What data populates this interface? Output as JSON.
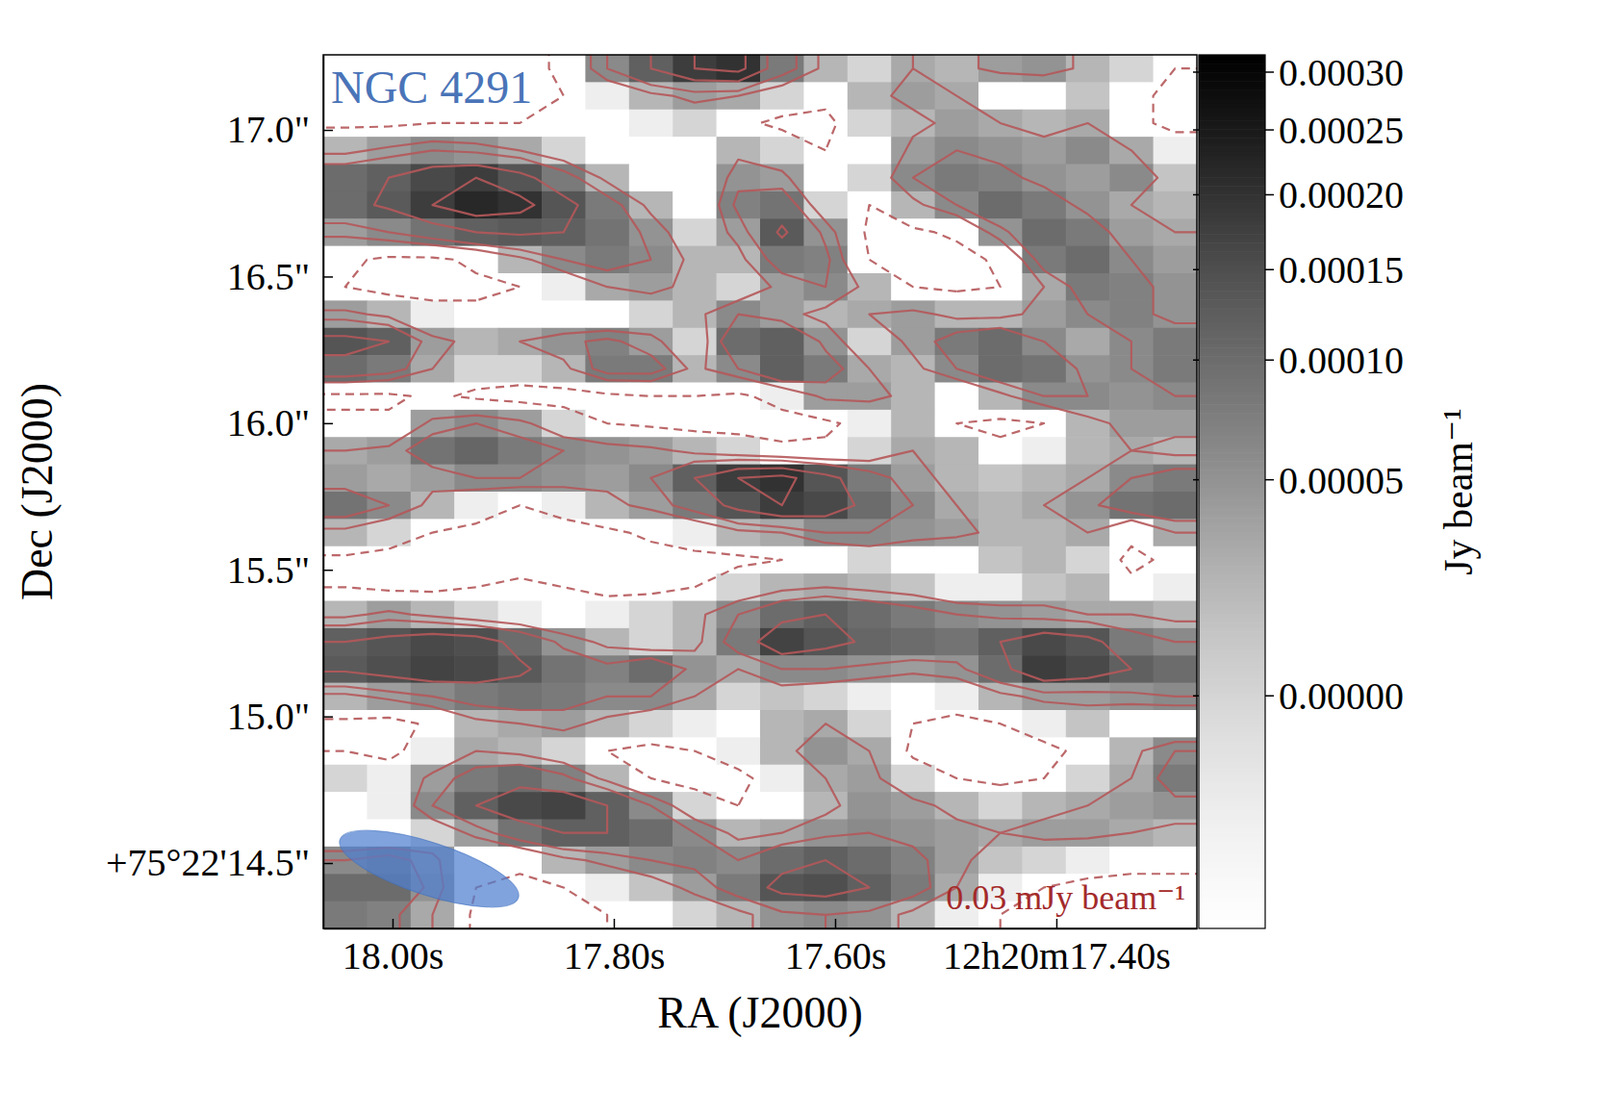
{
  "chart_data": {
    "type": "heatmap",
    "title": "NGC 4291",
    "x_label": "RA (J2000)",
    "y_label": "Dec (J2000)",
    "xlim": [
      18.0626,
      17.273
    ],
    "ylim": [
      14.277,
      17.256
    ],
    "xticks": [
      {
        "value": 18.0,
        "label": "18.00s"
      },
      {
        "value": 17.8,
        "label": "17.80s"
      },
      {
        "value": 17.6,
        "label": "17.60s"
      },
      {
        "value": 17.4,
        "label": "12h20m17.40s"
      }
    ],
    "yticks": [
      {
        "value": 14.5,
        "label": "+75°22'14.5\""
      },
      {
        "value": 15.0,
        "label": "15.0\""
      },
      {
        "value": 15.5,
        "label": "15.5\""
      },
      {
        "value": 16.0,
        "label": "16.0\""
      },
      {
        "value": 16.5,
        "label": "16.5\""
      },
      {
        "value": 17.0,
        "label": "17.0\""
      }
    ],
    "colorbar_label": "Jy beam⁻¹",
    "colorbar_range": [
      -1.2e-05,
      0.000316
    ],
    "colorbar_ticks": [
      {
        "value": 0,
        "label": "0.00000"
      },
      {
        "value": 5e-05,
        "label": "0.00005"
      },
      {
        "value": 0.0001,
        "label": "0.00010"
      },
      {
        "value": 0.00015,
        "label": "0.00015"
      },
      {
        "value": 0.0002,
        "label": "0.00020"
      },
      {
        "value": 0.00025,
        "label": "0.00025"
      },
      {
        "value": 0.0003,
        "label": "0.00030"
      }
    ],
    "contour_levels": [
      -3e-05,
      3e-05,
      6e-05,
      0.00012,
      0.00018
    ],
    "annotation": "0.03 mJy beam⁻¹",
    "beam": {
      "major": 0.64,
      "minor": 0.18,
      "pa": 72
    },
    "cells": [
      [
        -5e-05,
        -5e-05,
        -5e-05,
        -5e-05,
        -5e-05,
        -2e-05,
        6e-05,
        0.00012,
        0.00018,
        0.0002,
        8e-05,
        2e-05,
        0,
        3e-05,
        2e-05,
        4e-05,
        5e-05,
        2e-05,
        0,
        -3e-05
      ],
      [
        -5e-05,
        -5e-05,
        -5e-05,
        -5e-05,
        -4e-05,
        -3e-05,
        -1e-05,
        2e-05,
        4e-05,
        3e-05,
        0,
        -2e-05,
        2e-05,
        4e-05,
        3e-05,
        -2e-05,
        -3e-05,
        1e-05,
        -2e-05,
        -4e-05
      ],
      [
        -4e-05,
        -4e-05,
        -3e-05,
        -3e-05,
        -3e-05,
        -3e-05,
        -2e-05,
        -1e-05,
        0,
        -2e-05,
        -4e-05,
        -4e-05,
        0,
        2e-05,
        4e-05,
        3e-05,
        2e-05,
        3e-05,
        -2e-05,
        -4e-05
      ],
      [
        2e-05,
        4e-05,
        6e-05,
        5e-05,
        3e-05,
        0,
        -2e-05,
        -3e-05,
        -3e-05,
        2e-05,
        0,
        -3e-05,
        -2e-05,
        4e-05,
        6e-05,
        5e-05,
        4e-05,
        6e-05,
        3e-05,
        -1e-05
      ],
      [
        0.0001,
        0.00012,
        0.00016,
        0.00018,
        0.00014,
        8e-05,
        2e-05,
        -3e-05,
        -3e-05,
        5e-05,
        4e-05,
        -2e-05,
        0,
        6e-05,
        8e-05,
        7e-05,
        5e-05,
        4e-05,
        6e-05,
        1e-05
      ],
      [
        0.0001,
        0.00013,
        0.00018,
        0.00022,
        0.0002,
        0.00014,
        8e-05,
        2e-05,
        -2e-05,
        7e-05,
        9e-05,
        0,
        -3e-05,
        2e-05,
        6e-05,
        0.0001,
        8e-05,
        5e-05,
        3e-05,
        2e-05
      ],
      [
        4e-05,
        6e-05,
        9e-05,
        0.00012,
        0.00013,
        0.00012,
        9e-05,
        5e-05,
        0,
        4e-05,
        0.00013,
        5e-05,
        -4e-05,
        -4e-05,
        -2e-05,
        5e-05,
        0.0001,
        8e-05,
        4e-05,
        3e-05
      ],
      [
        -2e-05,
        -4e-05,
        -4e-05,
        -2e-05,
        2e-05,
        6e-05,
        8e-05,
        6e-05,
        2e-05,
        2e-05,
        8e-05,
        7e-05,
        -3e-05,
        -5e-05,
        -5e-05,
        -2e-05,
        8e-05,
        0.0001,
        6e-05,
        4e-05
      ],
      [
        -3e-05,
        -5e-05,
        -5e-05,
        -4e-05,
        -3e-05,
        -1e-05,
        3e-05,
        4e-05,
        2e-05,
        0,
        4e-05,
        6e-05,
        2e-05,
        -3e-05,
        -4e-05,
        -3e-05,
        3e-05,
        8e-05,
        7e-05,
        5e-05
      ],
      [
        4e-05,
        2e-05,
        -1e-05,
        -2e-05,
        -3e-05,
        -2e-05,
        -3e-05,
        0,
        2e-05,
        6e-05,
        4e-05,
        2e-05,
        3e-05,
        4e-05,
        2e-05,
        2e-05,
        4e-05,
        6e-05,
        7e-05,
        5e-05
      ],
      [
        0.00014,
        0.00012,
        4e-05,
        2e-05,
        3e-05,
        5e-05,
        7e-05,
        4e-05,
        0,
        0.0001,
        0.00012,
        5e-05,
        0,
        4e-05,
        8e-05,
        0.0001,
        6e-05,
        3e-05,
        6e-05,
        8e-05
      ],
      [
        0.0001,
        8e-05,
        3e-05,
        0,
        0,
        2e-05,
        8e-05,
        8e-05,
        2e-05,
        6e-05,
        0.00012,
        8e-05,
        3e-05,
        2e-05,
        6e-05,
        0.0001,
        9e-05,
        5e-05,
        6e-05,
        8e-05
      ],
      [
        -4e-05,
        -4e-05,
        -2e-05,
        -4e-05,
        -5e-05,
        -5e-05,
        -4e-05,
        -3e-05,
        -3e-05,
        -4e-05,
        -1e-05,
        4e-05,
        4e-05,
        2e-05,
        -2e-05,
        2e-05,
        6e-05,
        6e-05,
        5e-05,
        6e-05
      ],
      [
        -2e-05,
        -2e-05,
        4e-05,
        6e-05,
        4e-05,
        0,
        -3e-05,
        -4e-05,
        -5e-05,
        -5e-05,
        -5e-05,
        -4e-05,
        -1e-05,
        2e-05,
        -3e-05,
        -4e-05,
        -3e-05,
        2e-05,
        4e-05,
        4e-05
      ],
      [
        3e-05,
        4e-05,
        9e-05,
        0.00011,
        8e-05,
        6e-05,
        5e-05,
        4e-05,
        2e-05,
        0,
        -2e-05,
        -2e-05,
        0,
        3e-05,
        2e-05,
        -2e-05,
        -1e-05,
        2e-05,
        3e-05,
        2e-05
      ],
      [
        4e-05,
        3e-05,
        4e-05,
        6e-05,
        6e-05,
        5e-05,
        4e-05,
        6e-05,
        0.00012,
        0.00018,
        0.0002,
        0.00014,
        8e-05,
        4e-05,
        2e-05,
        1e-05,
        2e-05,
        3e-05,
        6e-05,
        8e-05
      ],
      [
        9e-05,
        6e-05,
        2e-05,
        -1e-05,
        -3e-05,
        -1e-05,
        2e-05,
        4e-05,
        8e-05,
        0.00014,
        0.00018,
        0.00016,
        0.0001,
        6e-05,
        3e-05,
        2e-05,
        3e-05,
        5e-05,
        9e-05,
        0.0001
      ],
      [
        2e-05,
        0,
        -3e-05,
        -4e-05,
        -5e-05,
        -5e-05,
        -4e-05,
        -2e-05,
        -1e-05,
        2e-05,
        3e-05,
        6e-05,
        6e-05,
        5e-05,
        4e-05,
        2e-05,
        2e-05,
        3e-05,
        -2e-05,
        3e-05
      ],
      [
        -4e-05,
        -5e-05,
        -5e-05,
        -5e-05,
        -5e-05,
        -5e-05,
        -5e-05,
        -5e-05,
        -4e-05,
        -4e-05,
        -3e-05,
        -2e-05,
        0,
        -2e-05,
        -2e-05,
        1e-05,
        2e-05,
        0,
        -4e-05,
        -2e-05
      ],
      [
        -3e-05,
        -4e-05,
        -4e-05,
        -3e-05,
        -2e-05,
        -3e-05,
        -4e-05,
        -4e-05,
        -3e-05,
        0,
        2e-05,
        3e-05,
        2e-05,
        1e-05,
        -1e-05,
        -1e-05,
        1e-05,
        2e-05,
        -2e-05,
        -1e-05
      ],
      [
        2e-05,
        4e-05,
        2e-05,
        0,
        -1e-05,
        -2e-05,
        -1e-05,
        0,
        2e-05,
        6e-05,
        0.0001,
        0.00012,
        0.0001,
        8e-05,
        6e-05,
        5e-05,
        4e-05,
        3e-05,
        3e-05,
        2e-05
      ],
      [
        0.00012,
        0.00014,
        0.00016,
        0.00015,
        0.0001,
        5e-05,
        2e-05,
        0,
        2e-05,
        8e-05,
        0.00017,
        0.00014,
        0.00011,
        0.0001,
        9e-05,
        0.00012,
        0.00016,
        0.00014,
        8e-05,
        6e-05
      ],
      [
        0.00013,
        0.00015,
        0.00017,
        0.00016,
        0.00013,
        9e-05,
        7e-05,
        0.0001,
        5e-05,
        3e-05,
        6e-05,
        6e-05,
        5e-05,
        4e-05,
        5e-05,
        0.0001,
        0.00018,
        0.00016,
        0.00012,
        0.0001
      ],
      [
        2e-05,
        4e-05,
        6e-05,
        8e-05,
        9e-05,
        8e-05,
        6e-05,
        6e-05,
        3e-05,
        0,
        1e-05,
        0,
        -1e-05,
        -2e-05,
        -1e-05,
        2e-05,
        4e-05,
        4e-05,
        5e-05,
        6e-05
      ],
      [
        -4e-05,
        -5e-05,
        -2e-05,
        2e-05,
        3e-05,
        4e-05,
        2e-05,
        0,
        -1e-05,
        -2e-05,
        2e-05,
        3e-05,
        0,
        -3e-05,
        -4e-05,
        -3e-05,
        -1e-05,
        1e-05,
        -2e-05,
        -3e-05
      ],
      [
        -3e-05,
        -4e-05,
        -1e-05,
        3e-05,
        2e-05,
        0,
        -3e-05,
        -4e-05,
        -3e-05,
        -1e-05,
        2e-05,
        5e-05,
        3e-05,
        -4e-05,
        -5e-05,
        -5e-05,
        -4e-05,
        -2e-05,
        2e-05,
        6e-05
      ],
      [
        0,
        -1e-05,
        4e-05,
        8e-05,
        0.0001,
        7e-05,
        2e-05,
        -3e-05,
        -5e-05,
        -4e-05,
        -1e-05,
        3e-05,
        4e-05,
        0,
        -3e-05,
        -4e-05,
        -3e-05,
        0,
        3e-05,
        8e-05
      ],
      [
        -2e-05,
        -1e-05,
        6e-05,
        0.00012,
        0.00016,
        0.00017,
        0.00012,
        6e-05,
        0,
        -3e-05,
        -2e-05,
        2e-05,
        5e-05,
        4e-05,
        2e-05,
        0,
        2e-05,
        3e-05,
        4e-05,
        5e-05
      ],
      [
        -3e-05,
        -3e-05,
        0,
        4e-05,
        9e-05,
        0.00012,
        0.00012,
        0.0001,
        6e-05,
        2e-05,
        3e-05,
        5e-05,
        6e-05,
        5e-05,
        4e-05,
        3e-05,
        4e-05,
        4e-05,
        3e-05,
        2e-05
      ],
      [
        6e-05,
        8e-05,
        4e-05,
        -2e-05,
        -2e-05,
        2e-05,
        4e-05,
        6e-05,
        7e-05,
        6e-05,
        0.0001,
        0.00012,
        0.0001,
        7e-05,
        4e-05,
        1e-05,
        0,
        -1e-05,
        -2e-05,
        -2e-05
      ],
      [
        0.0001,
        0.0001,
        5e-05,
        -3e-05,
        -4e-05,
        -3e-05,
        -1e-05,
        1e-05,
        4e-05,
        8e-05,
        0.00014,
        0.00015,
        0.00012,
        8e-05,
        3e-05,
        -1e-05,
        -3e-05,
        -4e-05,
        -4e-05,
        -4e-05
      ],
      [
        8e-05,
        7e-05,
        3e-05,
        -4e-05,
        -5e-05,
        -4e-05,
        -3e-05,
        -2e-05,
        0,
        2e-05,
        5e-05,
        6e-05,
        5e-05,
        2e-05,
        -1e-05,
        -3e-05,
        -4e-05,
        -5e-05,
        -5e-05,
        -5e-05
      ]
    ]
  }
}
